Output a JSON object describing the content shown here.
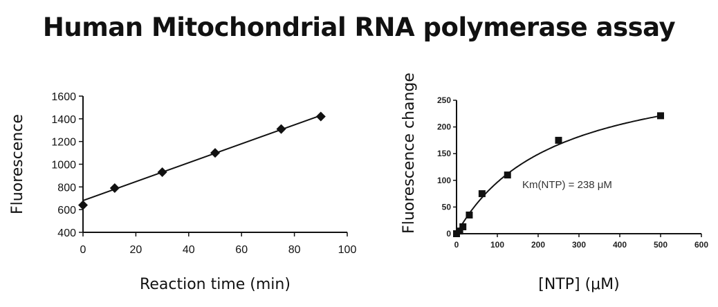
{
  "title": "Human Mitochondrial RNA polymerase assay",
  "chart_data": [
    {
      "type": "scatter",
      "xlabel": "Reaction time (min)",
      "ylabel": "Fluorescence",
      "xlim": [
        0,
        100
      ],
      "ylim": [
        400,
        1600
      ],
      "xticks": [
        0,
        20,
        40,
        60,
        80,
        100
      ],
      "yticks": [
        400,
        600,
        800,
        1000,
        1200,
        1400,
        1600
      ],
      "marker": "diamond",
      "grid": false,
      "x": [
        0,
        12,
        30,
        50,
        75,
        90
      ],
      "y": [
        640,
        790,
        930,
        1100,
        1310,
        1420
      ],
      "fit": {
        "type": "linear",
        "x": [
          0,
          90
        ],
        "y": [
          680,
          1430
        ]
      }
    },
    {
      "type": "scatter",
      "xlabel": "[NTP] (μM)",
      "ylabel": "Fluorescence change",
      "xlim": [
        0,
        600
      ],
      "ylim": [
        0,
        250
      ],
      "xticks": [
        0,
        100,
        200,
        300,
        400,
        500,
        600
      ],
      "yticks": [
        0,
        50,
        100,
        150,
        200,
        250
      ],
      "marker": "square",
      "grid": false,
      "x": [
        0,
        7.8,
        15.6,
        31.25,
        62.5,
        125,
        250,
        500
      ],
      "y": [
        0,
        5,
        13,
        35,
        75,
        110,
        175,
        221
      ],
      "fit": {
        "type": "michaelis-menten",
        "Km": 238,
        "Vmax": 326
      },
      "annotation": "Km(NTP) = 238 μM"
    }
  ]
}
